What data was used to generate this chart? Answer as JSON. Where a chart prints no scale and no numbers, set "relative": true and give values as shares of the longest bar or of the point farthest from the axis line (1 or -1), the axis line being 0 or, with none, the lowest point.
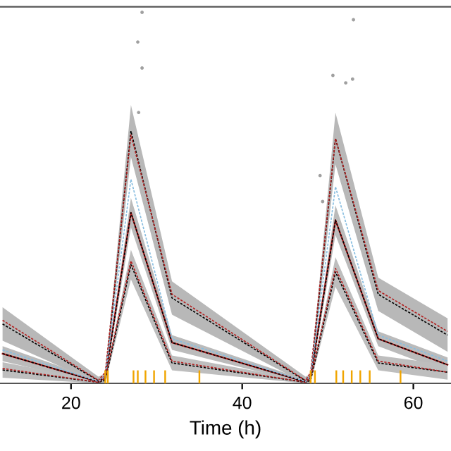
{
  "chart_data": {
    "type": "line",
    "relative": true,
    "xlabel": "Time (h)",
    "xlim": [
      11.7,
      64.4
    ],
    "xticks": [
      20,
      40,
      60
    ],
    "tick_labels": "x",
    "grid": false,
    "legend": false,
    "x": [
      12,
      23.2,
      24,
      27,
      31.8,
      47.4,
      48,
      50.9,
      55.9,
      64
    ],
    "series": [
      {
        "color": "#000000",
        "line_style": "dashed",
        "values": [
          0.16,
          0.007,
          0.015,
          0.68,
          0.23,
          0.007,
          0.015,
          0.66,
          0.24,
          0.13
        ],
        "lower": [
          0.115,
          0.0,
          0.005,
          0.61,
          0.185,
          0.0,
          0.005,
          0.59,
          0.195,
          0.085
        ],
        "upper": [
          0.205,
          0.018,
          0.025,
          0.75,
          0.275,
          0.018,
          0.025,
          0.73,
          0.285,
          0.175
        ]
      },
      {
        "color": "#000000",
        "line_style": "dashed",
        "values": [
          0.08,
          0.004,
          0.011,
          0.46,
          0.11,
          0.004,
          0.011,
          0.44,
          0.12,
          0.05
        ],
        "lower": [
          0.06,
          0.0,
          0.004,
          0.42,
          0.09,
          0.0,
          0.004,
          0.4,
          0.1,
          0.03
        ],
        "upper": [
          0.1,
          0.01,
          0.018,
          0.5,
          0.13,
          0.01,
          0.018,
          0.48,
          0.14,
          0.07
        ]
      },
      {
        "color": "#000000",
        "line_style": "dashed",
        "values": [
          0.036,
          0.003,
          0.008,
          0.32,
          0.055,
          0.003,
          0.008,
          0.3,
          0.055,
          0.03
        ],
        "lower": [
          0.015,
          0.0,
          0.002,
          0.28,
          0.035,
          0.0,
          0.002,
          0.26,
          0.035,
          0.01
        ],
        "upper": [
          0.057,
          0.008,
          0.014,
          0.36,
          0.075,
          0.008,
          0.014,
          0.34,
          0.075,
          0.05
        ]
      },
      {
        "color": "#b22222",
        "line_style": "solid",
        "values": [
          0.08,
          0.004,
          0.02,
          0.46,
          0.11,
          0.004,
          0.02,
          0.44,
          0.12,
          0.05
        ]
      },
      {
        "color": "#b22222",
        "line_style": "dashed",
        "values": [
          0.17,
          0.008,
          0.03,
          0.67,
          0.24,
          0.008,
          0.03,
          0.66,
          0.25,
          0.14
        ]
      },
      {
        "color": "#b22222",
        "line_style": "dashed",
        "values": [
          0.04,
          0.003,
          0.015,
          0.33,
          0.06,
          0.003,
          0.015,
          0.31,
          0.06,
          0.03
        ]
      },
      {
        "color": "#87bde0",
        "line_style": "dashed",
        "values": [
          0.09,
          0.005,
          0.02,
          0.55,
          0.12,
          0.005,
          0.02,
          0.53,
          0.13,
          0.06
        ]
      },
      {
        "type": "scatter",
        "color": "#a0a0a0",
        "marker": "circle",
        "x": [
          28.3,
          27.8,
          28.3,
          27.9,
          53.0,
          50.6,
          52.1,
          52.9,
          49.1,
          49.4
        ],
        "values": [
          1.0,
          0.92,
          0.85,
          0.73,
          0.98,
          0.83,
          0.81,
          0.82,
          0.56,
          0.49
        ]
      },
      {
        "type": "bar",
        "color": "#f0a500",
        "x": [
          24,
          24.3,
          27.3,
          27.8,
          28.7,
          29.7,
          31,
          35,
          48,
          48.5,
          51,
          51.8,
          52.8,
          53.8,
          54.9,
          58.5
        ],
        "values": [
          0.035,
          0.035,
          0.035,
          0.035,
          0.035,
          0.035,
          0.035,
          0.035,
          0.035,
          0.035,
          0.035,
          0.035,
          0.035,
          0.035,
          0.035,
          0.035
        ]
      }
    ]
  }
}
